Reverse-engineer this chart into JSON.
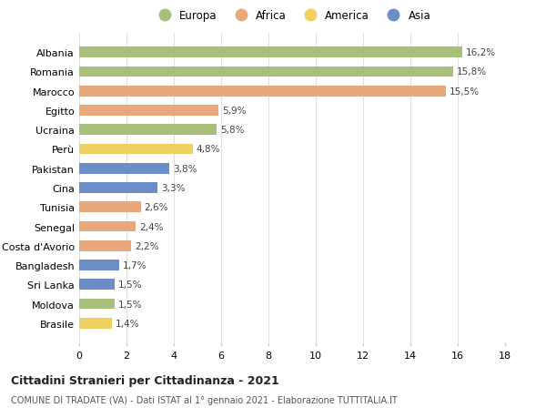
{
  "categories": [
    "Albania",
    "Romania",
    "Marocco",
    "Egitto",
    "Ucraina",
    "Perù",
    "Pakistan",
    "Cina",
    "Tunisia",
    "Senegal",
    "Costa d'Avorio",
    "Bangladesh",
    "Sri Lanka",
    "Moldova",
    "Brasile"
  ],
  "values": [
    16.2,
    15.8,
    15.5,
    5.9,
    5.8,
    4.8,
    3.8,
    3.3,
    2.6,
    2.4,
    2.2,
    1.7,
    1.5,
    1.5,
    1.4
  ],
  "labels": [
    "16,2%",
    "15,8%",
    "15,5%",
    "5,9%",
    "5,8%",
    "4,8%",
    "3,8%",
    "3,3%",
    "2,6%",
    "2,4%",
    "2,2%",
    "1,7%",
    "1,5%",
    "1,5%",
    "1,4%"
  ],
  "continents": [
    "Europa",
    "Europa",
    "Africa",
    "Africa",
    "Europa",
    "America",
    "Asia",
    "Asia",
    "Africa",
    "Africa",
    "Africa",
    "Asia",
    "Asia",
    "Europa",
    "America"
  ],
  "colors": {
    "Europa": "#a8c07a",
    "Africa": "#e8a87c",
    "America": "#f0d060",
    "Asia": "#6b8ec7"
  },
  "legend_order": [
    "Europa",
    "Africa",
    "America",
    "Asia"
  ],
  "title": "Cittadini Stranieri per Cittadinanza - 2021",
  "subtitle": "COMUNE DI TRADATE (VA) - Dati ISTAT al 1° gennaio 2021 - Elaborazione TUTTITALIA.IT",
  "xlim": [
    0,
    18
  ],
  "xticks": [
    0,
    2,
    4,
    6,
    8,
    10,
    12,
    14,
    16,
    18
  ],
  "bg_color": "#ffffff",
  "grid_color": "#e0e0e0",
  "bar_height": 0.55,
  "label_fontsize": 7.5,
  "ytick_fontsize": 8.0,
  "xtick_fontsize": 8.0,
  "title_fontsize": 9.0,
  "subtitle_fontsize": 7.0,
  "legend_fontsize": 8.5
}
